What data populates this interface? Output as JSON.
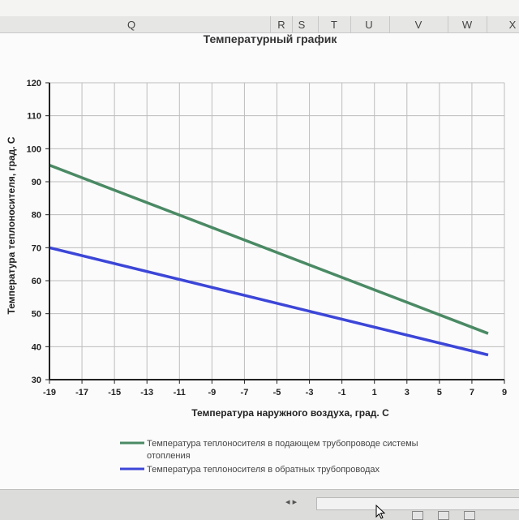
{
  "spreadsheet": {
    "columns": [
      "Q",
      "R",
      "S",
      "T",
      "U",
      "V",
      "W",
      "X"
    ]
  },
  "colors": {
    "supply_line": "#4a8a64",
    "return_line": "#3c46d8",
    "grid": "#bdbdbd",
    "axis": "#222222"
  },
  "chart_data": {
    "type": "line",
    "title": "Температурный график",
    "xlabel": "Температура наружного воздуха, град. С",
    "ylabel": "Температура теплоносителя, град. С",
    "xlim": [
      -19,
      9
    ],
    "ylim": [
      30,
      120
    ],
    "x_ticks": [
      -19,
      -17,
      -15,
      -13,
      -11,
      -9,
      -7,
      -5,
      -3,
      -1,
      1,
      3,
      5,
      7,
      9
    ],
    "y_ticks": [
      30,
      40,
      50,
      60,
      70,
      80,
      90,
      100,
      110,
      120
    ],
    "grid": true,
    "legend_position": "bottom",
    "series": [
      {
        "name": "Температура теплоносителя в подающем трубопроводе системы отопления",
        "color_key": "supply_line",
        "x": [
          -19,
          8
        ],
        "y": [
          95,
          44
        ]
      },
      {
        "name": "Температура теплоносителя в обратных трубопроводах",
        "color_key": "return_line",
        "x": [
          -19,
          8
        ],
        "y": [
          70,
          37.5
        ]
      }
    ]
  },
  "legend": {
    "supply_line1": "Температура теплоносителя в подающем трубопроводе системы",
    "supply_line2": "отопления",
    "return_line1": "Температура теплоносителя в обратных трубопроводах"
  },
  "icons": {
    "cursor": "mouse-pointer-icon"
  }
}
